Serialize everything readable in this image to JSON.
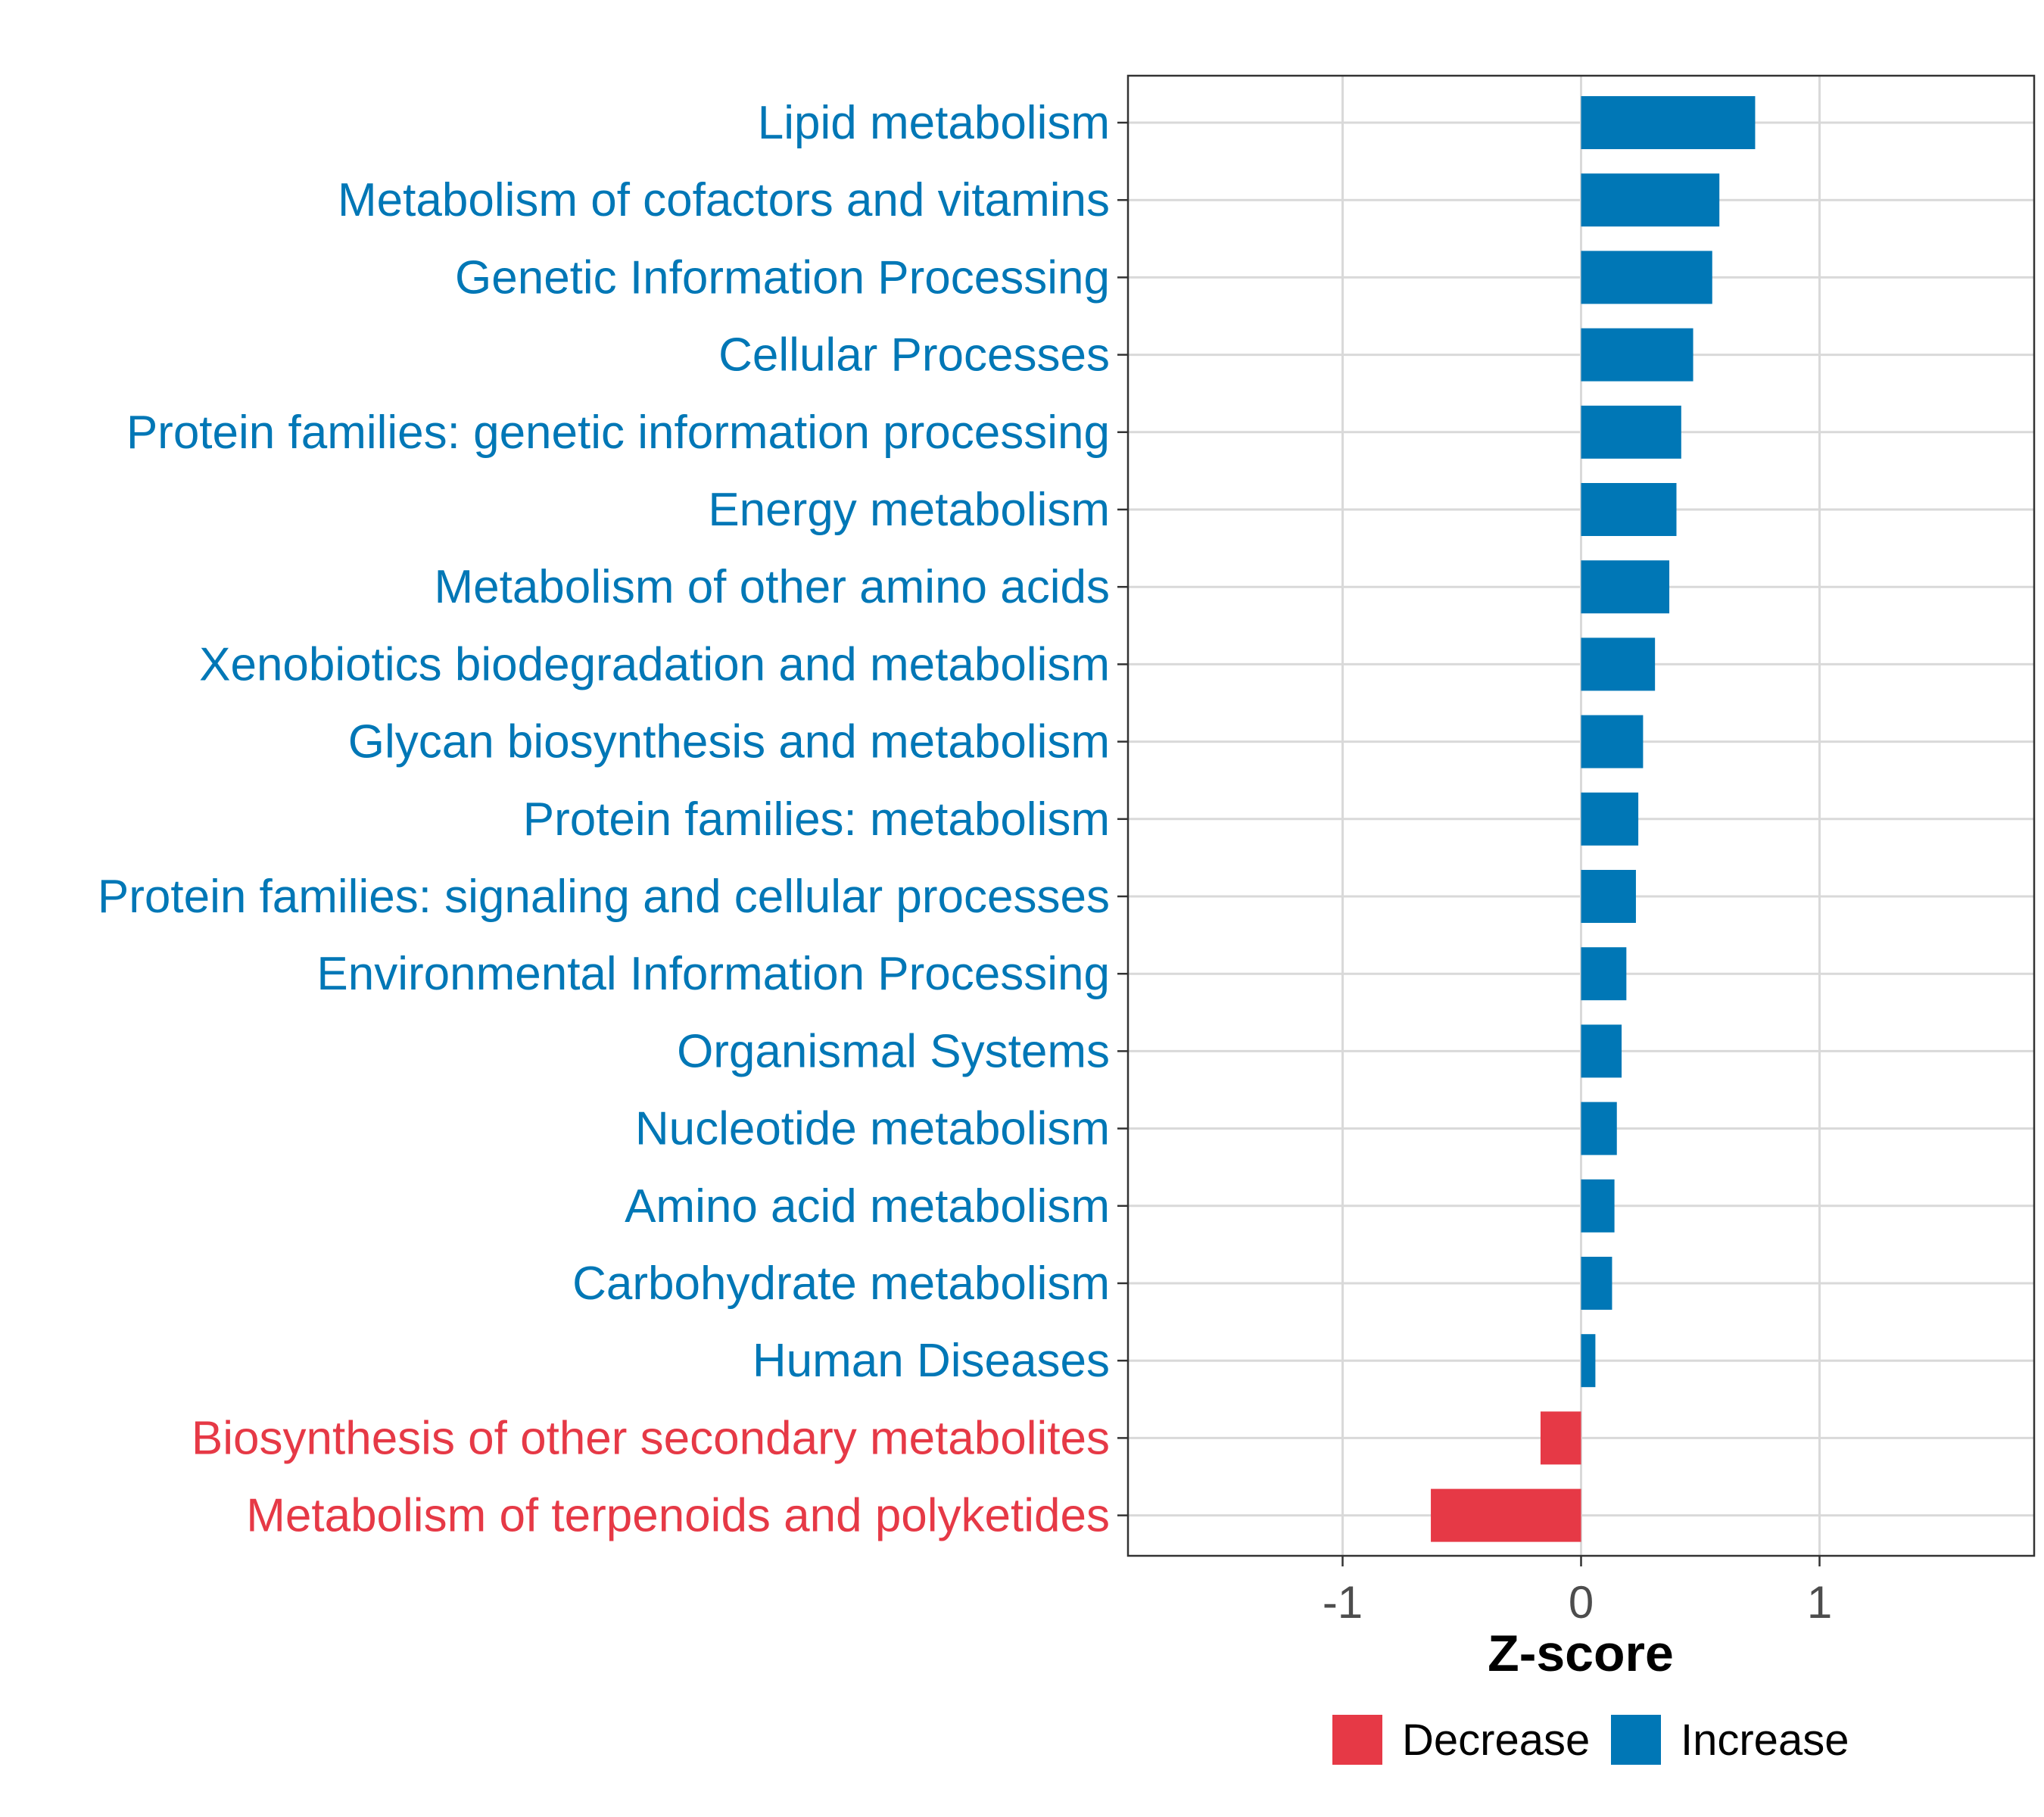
{
  "chart_data": {
    "type": "bar",
    "orientation": "horizontal",
    "title": "",
    "xlabel": "Z-score",
    "ylabel": "",
    "xlim": [
      -1.9,
      1.9
    ],
    "xticks": [
      -1,
      0,
      1
    ],
    "xtick_labels": [
      "-1",
      "0",
      "1"
    ],
    "grid": true,
    "legend_position": "bottom",
    "categories": [
      "Lipid metabolism",
      "Metabolism of cofactors and vitamins",
      "Genetic Information Processing",
      "Cellular Processes",
      "Protein families: genetic information processing",
      "Energy metabolism",
      "Metabolism of other amino acids",
      "Xenobiotics biodegradation and metabolism",
      "Glycan biosynthesis and metabolism",
      "Protein families: metabolism",
      "Protein families: signaling and cellular processes",
      "Environmental Information Processing",
      "Organismal Systems",
      "Nucleotide metabolism",
      "Amino acid metabolism",
      "Carbohydrate metabolism",
      "Human Diseases",
      "Biosynthesis of other secondary metabolites",
      "Metabolism of terpenoids and polyketides"
    ],
    "values": [
      0.73,
      0.58,
      0.55,
      0.47,
      0.42,
      0.4,
      0.37,
      0.31,
      0.26,
      0.24,
      0.23,
      0.19,
      0.17,
      0.15,
      0.14,
      0.13,
      0.06,
      -0.17,
      -0.63
    ],
    "groups": [
      "Increase",
      "Increase",
      "Increase",
      "Increase",
      "Increase",
      "Increase",
      "Increase",
      "Increase",
      "Increase",
      "Increase",
      "Increase",
      "Increase",
      "Increase",
      "Increase",
      "Increase",
      "Increase",
      "Increase",
      "Decrease",
      "Decrease"
    ],
    "legend": [
      {
        "name": "Decrease",
        "color": "#E63946"
      },
      {
        "name": "Increase",
        "color": "#0077B6"
      }
    ]
  }
}
